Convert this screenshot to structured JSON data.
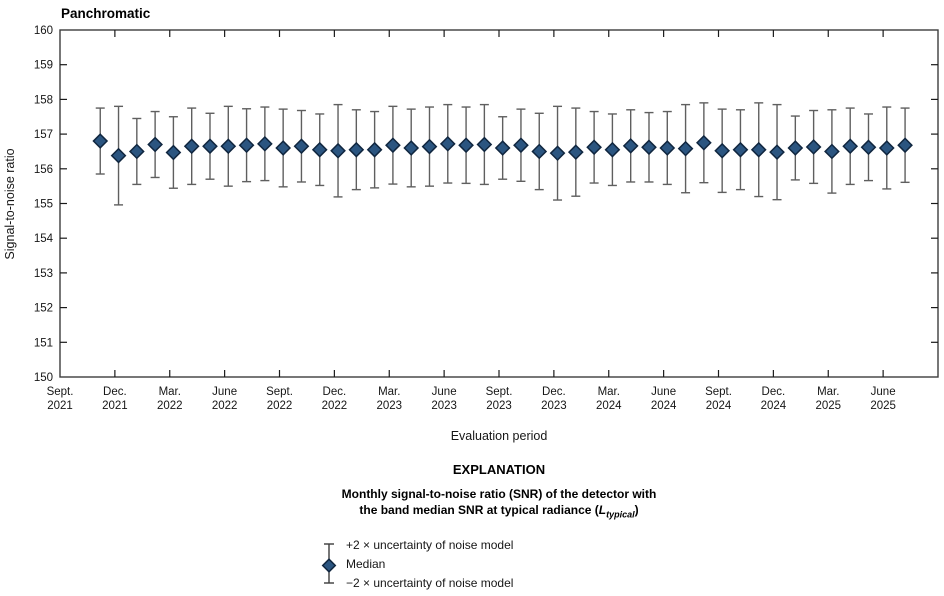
{
  "title": "Panchromatic",
  "y_axis": {
    "label": "Signal-to-noise ratio"
  },
  "x_axis": {
    "label": "Evaluation period"
  },
  "explanation": {
    "heading": "EXPLANATION",
    "desc_line1": "Monthly signal-to-noise ratio (SNR) of the detector with",
    "desc_line2_pre": "the band median SNR at typical radiance (",
    "desc_symbol": "L",
    "desc_subscript": "typical",
    "desc_line2_post": ")",
    "legend": {
      "upper": "+2 × uncertainty of noise model",
      "median": "Median",
      "lower": "−2 × uncertainty of noise model"
    }
  },
  "chart_data": {
    "type": "scatter",
    "subtype": "median-with-errorbars",
    "title": "Panchromatic",
    "xlabel": "Evaluation period",
    "ylabel": "Signal-to-noise ratio",
    "ylim": [
      150,
      160
    ],
    "yticks": [
      150,
      151,
      152,
      153,
      154,
      155,
      156,
      157,
      158,
      159,
      160
    ],
    "grid": false,
    "legend_position": "below",
    "x_axis_start": "Sept. 2021",
    "x_axis_end": "Sept. 2025",
    "x_ticks": [
      {
        "m": 0,
        "month": "Sept.",
        "year": "2021"
      },
      {
        "m": 3,
        "month": "Dec.",
        "year": "2021"
      },
      {
        "m": 6,
        "month": "Mar.",
        "year": "2022"
      },
      {
        "m": 9,
        "month": "June",
        "year": "2022"
      },
      {
        "m": 12,
        "month": "Sept.",
        "year": "2022"
      },
      {
        "m": 15,
        "month": "Dec.",
        "year": "2022"
      },
      {
        "m": 18,
        "month": "Mar.",
        "year": "2023"
      },
      {
        "m": 21,
        "month": "June",
        "year": "2023"
      },
      {
        "m": 24,
        "month": "Sept.",
        "year": "2023"
      },
      {
        "m": 27,
        "month": "Dec.",
        "year": "2023"
      },
      {
        "m": 30,
        "month": "Mar.",
        "year": "2024"
      },
      {
        "m": 33,
        "month": "June",
        "year": "2024"
      },
      {
        "m": 36,
        "month": "Sept.",
        "year": "2024"
      },
      {
        "m": 39,
        "month": "Dec.",
        "year": "2024"
      },
      {
        "m": 42,
        "month": "Mar.",
        "year": "2025"
      },
      {
        "m": 45,
        "month": "June",
        "year": "2025"
      }
    ],
    "style": {
      "marker_fill": "#2b5580",
      "marker_stroke": "#10263f",
      "errorbar_color": "#5f5f5f",
      "legend_errorbar_color": "#3c3c3c",
      "frame_color": "#3d3d3d",
      "text_color": "#161616"
    },
    "points": [
      {
        "date": "Nov. 2021",
        "m": 2,
        "median": 156.8,
        "upper": 157.75,
        "lower": 155.85
      },
      {
        "date": "Dec. 2021",
        "m": 3,
        "median": 156.38,
        "upper": 157.8,
        "lower": 154.96
      },
      {
        "date": "Jan. 2022",
        "m": 4,
        "median": 156.5,
        "upper": 157.45,
        "lower": 155.55
      },
      {
        "date": "Feb. 2022",
        "m": 5,
        "median": 156.7,
        "upper": 157.65,
        "lower": 155.75
      },
      {
        "date": "Mar. 2022",
        "m": 6,
        "median": 156.47,
        "upper": 157.5,
        "lower": 155.44
      },
      {
        "date": "Apr. 2022",
        "m": 7,
        "median": 156.65,
        "upper": 157.75,
        "lower": 155.55
      },
      {
        "date": "May 2022",
        "m": 8,
        "median": 156.65,
        "upper": 157.6,
        "lower": 155.7
      },
      {
        "date": "June 2022",
        "m": 9,
        "median": 156.65,
        "upper": 157.8,
        "lower": 155.5
      },
      {
        "date": "July 2022",
        "m": 10,
        "median": 156.68,
        "upper": 157.73,
        "lower": 155.63
      },
      {
        "date": "Aug. 2022",
        "m": 11,
        "median": 156.72,
        "upper": 157.78,
        "lower": 155.66
      },
      {
        "date": "Sept. 2022",
        "m": 12,
        "median": 156.6,
        "upper": 157.72,
        "lower": 155.48
      },
      {
        "date": "Oct. 2022",
        "m": 13,
        "median": 156.65,
        "upper": 157.68,
        "lower": 155.62
      },
      {
        "date": "Nov. 2022",
        "m": 14,
        "median": 156.55,
        "upper": 157.58,
        "lower": 155.52
      },
      {
        "date": "Dec. 2022",
        "m": 15,
        "median": 156.52,
        "upper": 157.85,
        "lower": 155.19
      },
      {
        "date": "Jan. 2023",
        "m": 16,
        "median": 156.55,
        "upper": 157.7,
        "lower": 155.4
      },
      {
        "date": "Feb. 2023",
        "m": 17,
        "median": 156.55,
        "upper": 157.65,
        "lower": 155.45
      },
      {
        "date": "Mar. 2023",
        "m": 18,
        "median": 156.68,
        "upper": 157.8,
        "lower": 155.56
      },
      {
        "date": "Apr. 2023",
        "m": 19,
        "median": 156.6,
        "upper": 157.72,
        "lower": 155.48
      },
      {
        "date": "May 2023",
        "m": 20,
        "median": 156.64,
        "upper": 157.78,
        "lower": 155.5
      },
      {
        "date": "June 2023",
        "m": 21,
        "median": 156.72,
        "upper": 157.85,
        "lower": 155.59
      },
      {
        "date": "July 2023",
        "m": 22,
        "median": 156.68,
        "upper": 157.78,
        "lower": 155.58
      },
      {
        "date": "Aug. 2023",
        "m": 23,
        "median": 156.7,
        "upper": 157.85,
        "lower": 155.55
      },
      {
        "date": "Sept. 2023",
        "m": 24,
        "median": 156.6,
        "upper": 157.5,
        "lower": 155.7
      },
      {
        "date": "Oct. 2023",
        "m": 25,
        "median": 156.68,
        "upper": 157.72,
        "lower": 155.64
      },
      {
        "date": "Nov. 2023",
        "m": 26,
        "median": 156.5,
        "upper": 157.6,
        "lower": 155.4
      },
      {
        "date": "Dec. 2023",
        "m": 27,
        "median": 156.45,
        "upper": 157.8,
        "lower": 155.1
      },
      {
        "date": "Jan. 2024",
        "m": 28,
        "median": 156.48,
        "upper": 157.75,
        "lower": 155.21
      },
      {
        "date": "Feb. 2024",
        "m": 29,
        "median": 156.62,
        "upper": 157.65,
        "lower": 155.59
      },
      {
        "date": "Mar. 2024",
        "m": 30,
        "median": 156.55,
        "upper": 157.58,
        "lower": 155.52
      },
      {
        "date": "Apr. 2024",
        "m": 31,
        "median": 156.66,
        "upper": 157.7,
        "lower": 155.62
      },
      {
        "date": "May 2024",
        "m": 32,
        "median": 156.62,
        "upper": 157.62,
        "lower": 155.62
      },
      {
        "date": "June 2024",
        "m": 33,
        "median": 156.6,
        "upper": 157.65,
        "lower": 155.55
      },
      {
        "date": "July 2024",
        "m": 34,
        "median": 156.58,
        "upper": 157.85,
        "lower": 155.31
      },
      {
        "date": "Aug. 2024",
        "m": 35,
        "median": 156.75,
        "upper": 157.9,
        "lower": 155.6
      },
      {
        "date": "Sept. 2024",
        "m": 36,
        "median": 156.52,
        "upper": 157.72,
        "lower": 155.32
      },
      {
        "date": "Oct. 2024",
        "m": 37,
        "median": 156.55,
        "upper": 157.7,
        "lower": 155.4
      },
      {
        "date": "Nov. 2024",
        "m": 38,
        "median": 156.55,
        "upper": 157.9,
        "lower": 155.2
      },
      {
        "date": "Dec. 2024",
        "m": 39,
        "median": 156.48,
        "upper": 157.85,
        "lower": 155.11
      },
      {
        "date": "Jan. 2025",
        "m": 40,
        "median": 156.6,
        "upper": 157.52,
        "lower": 155.68
      },
      {
        "date": "Feb. 2025",
        "m": 41,
        "median": 156.63,
        "upper": 157.68,
        "lower": 155.58
      },
      {
        "date": "Mar. 2025",
        "m": 42,
        "median": 156.5,
        "upper": 157.7,
        "lower": 155.3
      },
      {
        "date": "Apr. 2025",
        "m": 43,
        "median": 156.65,
        "upper": 157.75,
        "lower": 155.55
      },
      {
        "date": "May 2025",
        "m": 44,
        "median": 156.62,
        "upper": 157.58,
        "lower": 155.66
      },
      {
        "date": "June 2025",
        "m": 45,
        "median": 156.6,
        "upper": 157.78,
        "lower": 155.42
      },
      {
        "date": "July 2025",
        "m": 46,
        "median": 156.68,
        "upper": 157.75,
        "lower": 155.61
      }
    ]
  }
}
